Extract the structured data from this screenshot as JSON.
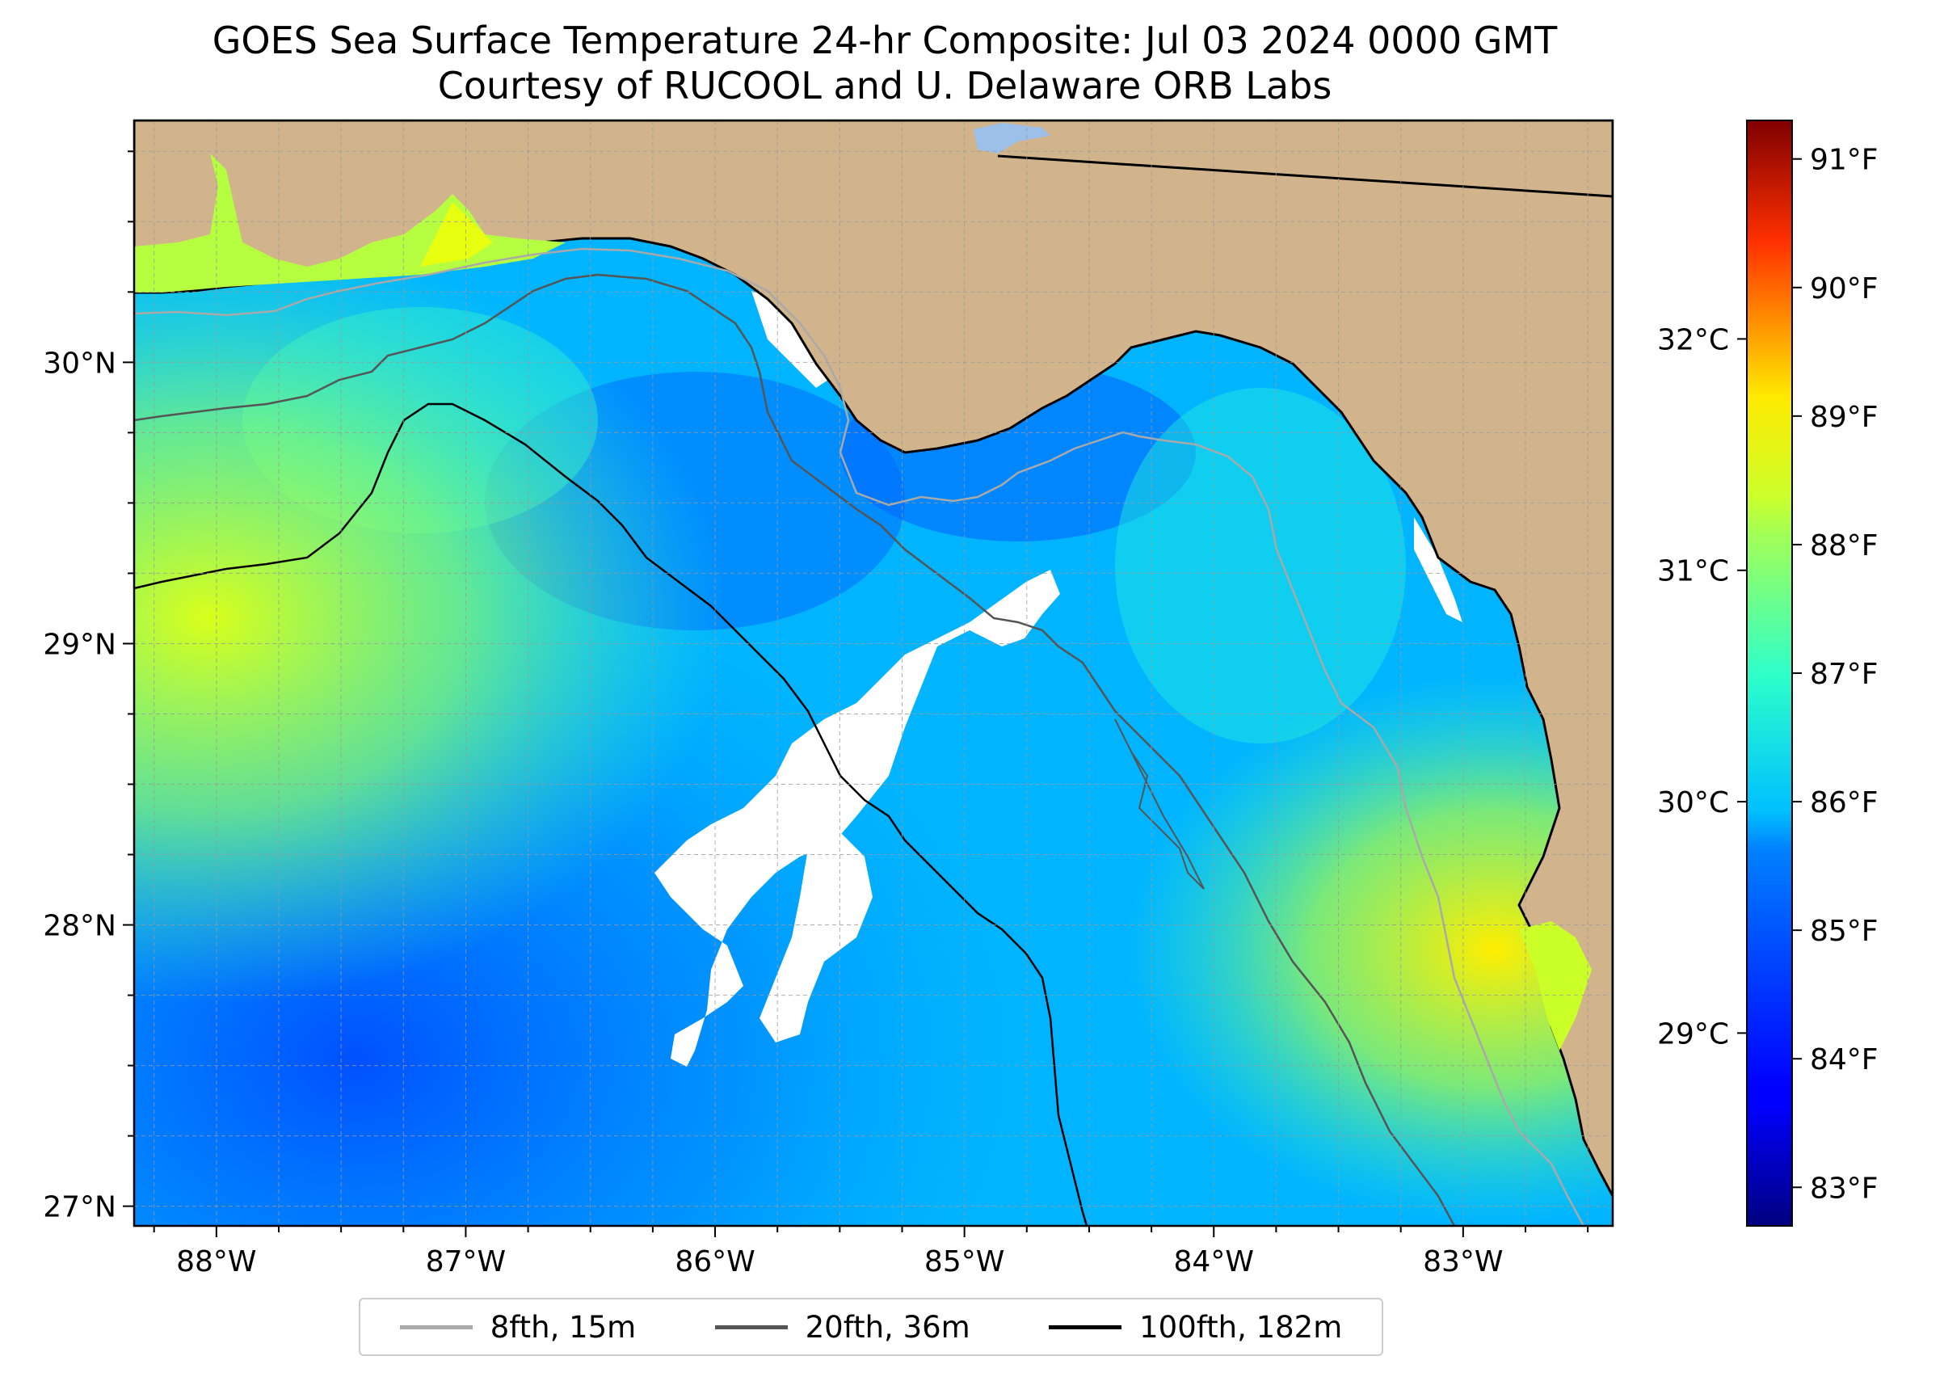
{
  "title": {
    "line1": "GOES Sea Surface Temperature 24-hr Composite: Jul 03 2024 0000 GMT",
    "line2": "Courtesy of RUCOOL and U. Delaware ORB Labs"
  },
  "map": {
    "lon_range": [
      -88.33,
      -82.4
    ],
    "lat_range": [
      26.93,
      30.86
    ],
    "lon_ticks": [
      {
        "value": -88,
        "label": "88°W"
      },
      {
        "value": -87,
        "label": "87°W"
      },
      {
        "value": -86,
        "label": "86°W"
      },
      {
        "value": -85,
        "label": "85°W"
      },
      {
        "value": -84,
        "label": "84°W"
      },
      {
        "value": -83,
        "label": "83°W"
      }
    ],
    "lat_ticks": [
      {
        "value": 27,
        "label": "27°N"
      },
      {
        "value": 28,
        "label": "28°N"
      },
      {
        "value": 29,
        "label": "29°N"
      },
      {
        "value": 30,
        "label": "30°N"
      }
    ],
    "gridlines": true,
    "land_color": "#d2b48c",
    "missing_data_color": "#ffffff"
  },
  "colorbar": {
    "colormap": "jet",
    "range_f": [
      82.7,
      91.3
    ],
    "f_ticks": [
      {
        "value": 83,
        "label": "83°F"
      },
      {
        "value": 84,
        "label": "84°F"
      },
      {
        "value": 85,
        "label": "85°F"
      },
      {
        "value": 86,
        "label": "86°F"
      },
      {
        "value": 87,
        "label": "87°F"
      },
      {
        "value": 88,
        "label": "88°F"
      },
      {
        "value": 89,
        "label": "89°F"
      },
      {
        "value": 90,
        "label": "90°F"
      },
      {
        "value": 91,
        "label": "91°F"
      }
    ],
    "c_ticks": [
      {
        "value": 29,
        "label": "29°C"
      },
      {
        "value": 30,
        "label": "30°C"
      },
      {
        "value": 31,
        "label": "31°C"
      },
      {
        "value": 32,
        "label": "32°C"
      }
    ]
  },
  "legend": {
    "entries": [
      {
        "label": "8fth, 15m",
        "color": "#a9a9a9"
      },
      {
        "label": "20fth, 36m",
        "color": "#555555"
      },
      {
        "label": "100fth, 182m",
        "color": "#000000"
      }
    ]
  }
}
